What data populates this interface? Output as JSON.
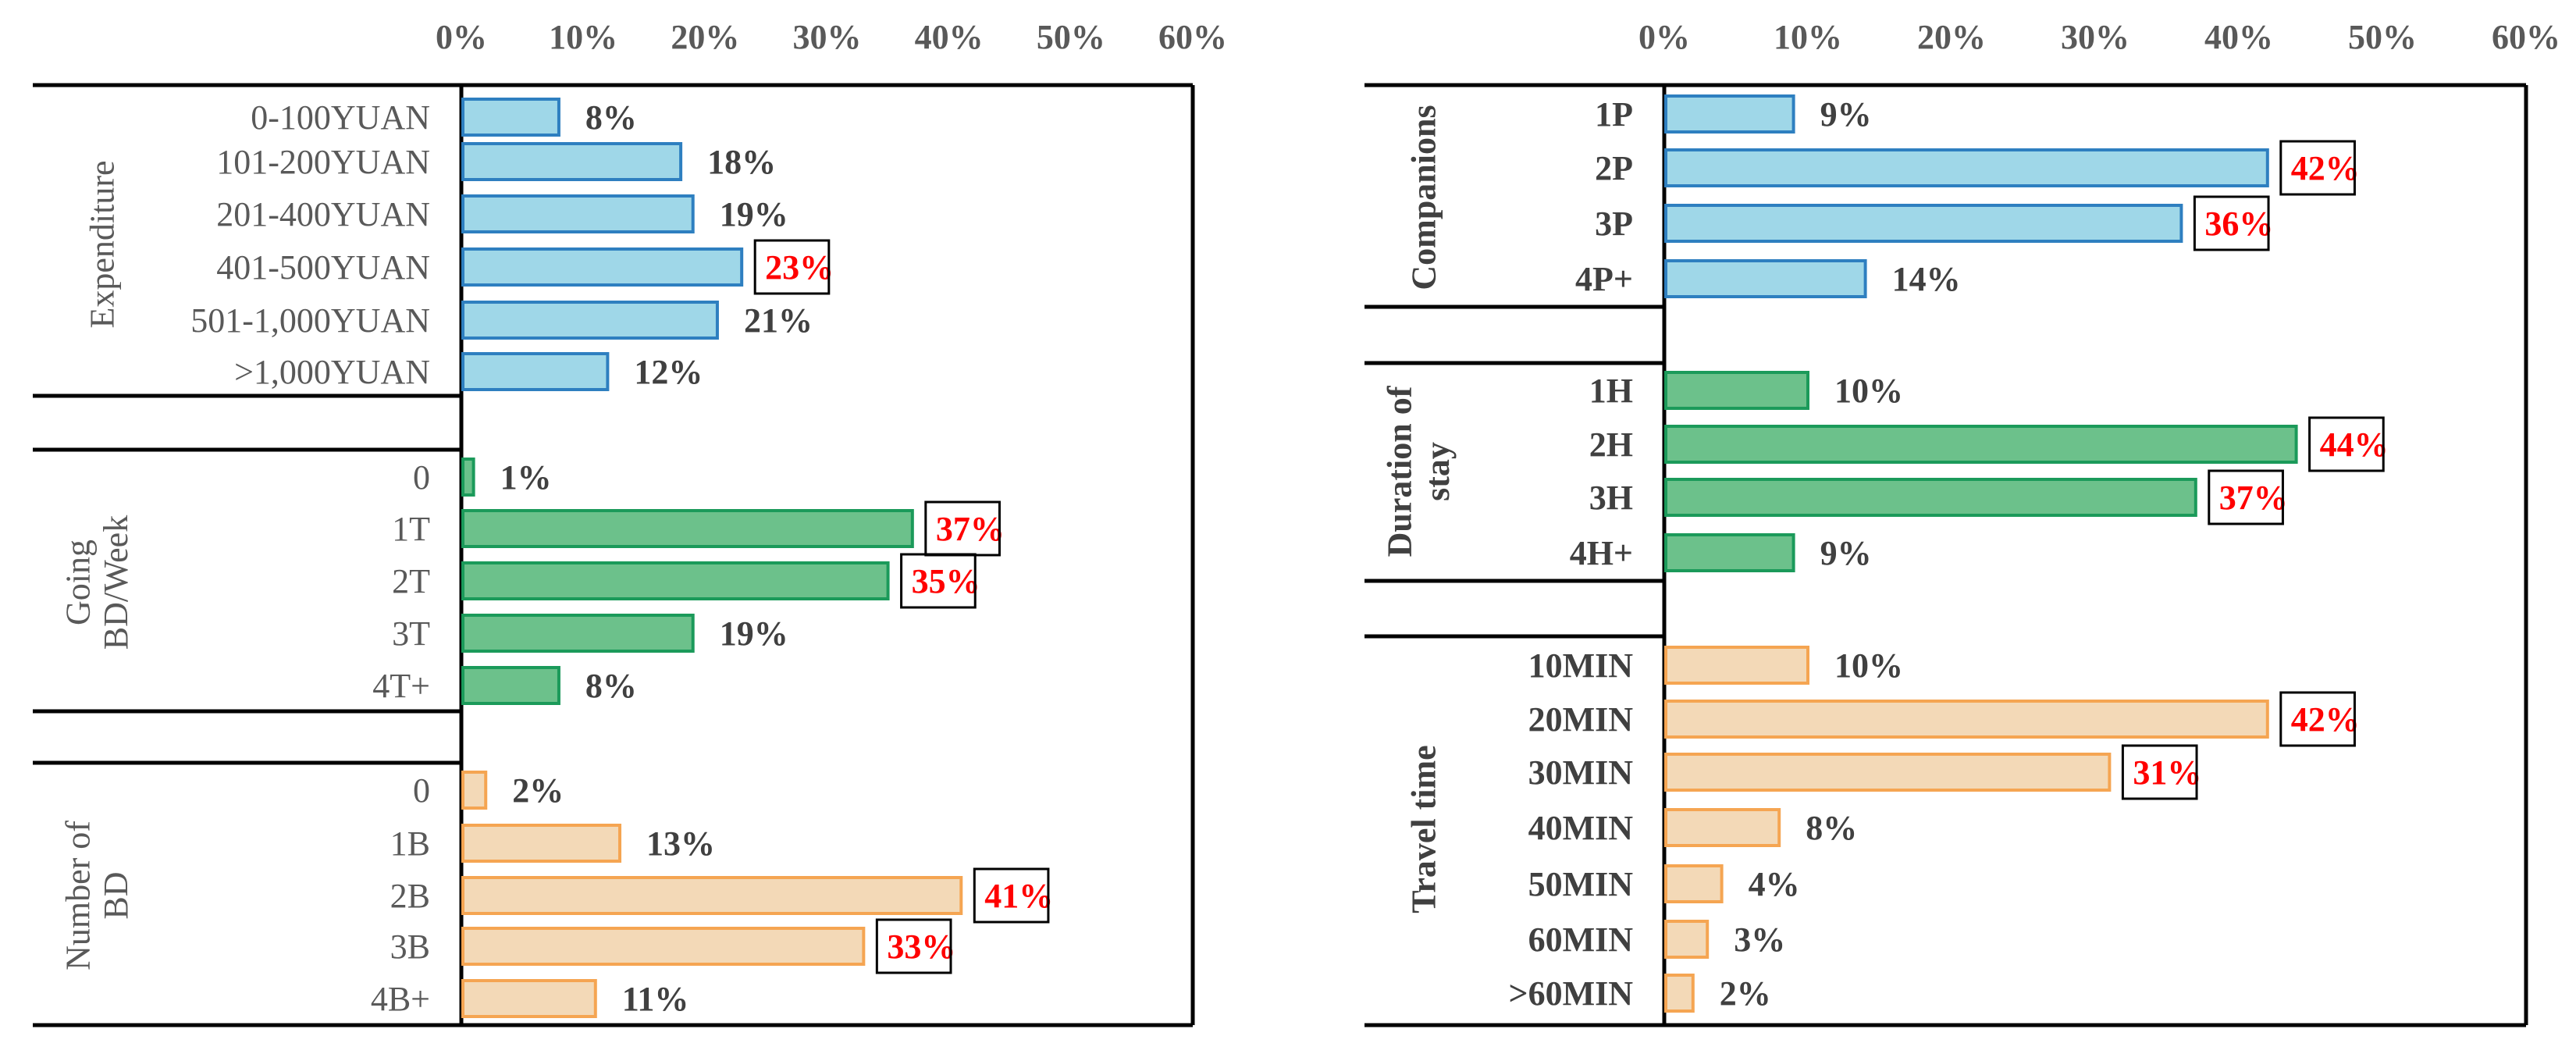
{
  "colors": {
    "blue_fill": "#9fd7e8",
    "blue_stroke": "#2e7fc0",
    "green_fill": "#6cc18b",
    "green_stroke": "#1b9a5a",
    "orange_fill": "#f3d9b7",
    "orange_stroke": "#f5a552",
    "highlight_text": "#ff0000",
    "value_text": "#404040",
    "label_text": "#595959",
    "axis": "#000000"
  },
  "chart_data": [
    {
      "type": "bar",
      "orientation": "horizontal",
      "x_ticks": [
        "0%",
        "10%",
        "20%",
        "30%",
        "40%",
        "50%",
        "60%"
      ],
      "xlim": [
        0,
        60
      ],
      "grid": false,
      "groups": [
        {
          "name": "Expenditure",
          "color": "blue",
          "categories": [
            "0-100YUAN",
            "101-200YUAN",
            "201-400YUAN",
            "401-500YUAN",
            "501-1,000YUAN",
            ">1,000YUAN"
          ],
          "values": [
            8,
            18,
            19,
            23,
            21,
            12
          ],
          "labels": [
            "8%",
            "18%",
            "19%",
            "23%",
            "21%",
            "12%"
          ],
          "highlight": [
            false,
            false,
            false,
            true,
            false,
            false
          ]
        },
        {
          "name": "Going BD/Week",
          "color": "green",
          "categories": [
            "0",
            "1T",
            "2T",
            "3T",
            "4T+"
          ],
          "values": [
            1,
            37,
            35,
            19,
            8
          ],
          "labels": [
            "1%",
            "37%",
            "35%",
            "19%",
            "8%"
          ],
          "highlight": [
            false,
            true,
            true,
            false,
            false
          ]
        },
        {
          "name": "Number of BD",
          "color": "orange",
          "categories": [
            "0",
            "1B",
            "2B",
            "3B",
            "4B+"
          ],
          "values": [
            2,
            13,
            41,
            33,
            11
          ],
          "labels": [
            "2%",
            "13%",
            "41%",
            "33%",
            "11%"
          ],
          "highlight": [
            false,
            false,
            true,
            true,
            false
          ]
        }
      ]
    },
    {
      "type": "bar",
      "orientation": "horizontal",
      "x_ticks": [
        "0%",
        "10%",
        "20%",
        "30%",
        "40%",
        "50%",
        "60%"
      ],
      "xlim": [
        0,
        60
      ],
      "grid": false,
      "groups": [
        {
          "name": "Companions",
          "color": "blue",
          "categories": [
            "1P",
            "2P",
            "3P",
            "4P+"
          ],
          "values": [
            9,
            42,
            36,
            14
          ],
          "labels": [
            "9%",
            "42%",
            "36%",
            "14%"
          ],
          "highlight": [
            false,
            true,
            true,
            false
          ]
        },
        {
          "name": "Duration of stay",
          "color": "green",
          "categories": [
            "1H",
            "2H",
            "3H",
            "4H+"
          ],
          "values": [
            10,
            44,
            37,
            9
          ],
          "labels": [
            "10%",
            "44%",
            "37%",
            "9%"
          ],
          "highlight": [
            false,
            true,
            true,
            false
          ]
        },
        {
          "name": "Travel time",
          "color": "orange",
          "categories": [
            "10MIN",
            "20MIN",
            "30MIN",
            "40MIN",
            "50MIN",
            "60MIN",
            ">60MIN"
          ],
          "values": [
            10,
            42,
            31,
            8,
            4,
            3,
            2
          ],
          "labels": [
            "10%",
            "42%",
            "31%",
            "8%",
            "4%",
            "3%",
            "2%"
          ],
          "highlight": [
            false,
            true,
            true,
            false,
            false,
            false,
            false
          ]
        }
      ]
    }
  ]
}
